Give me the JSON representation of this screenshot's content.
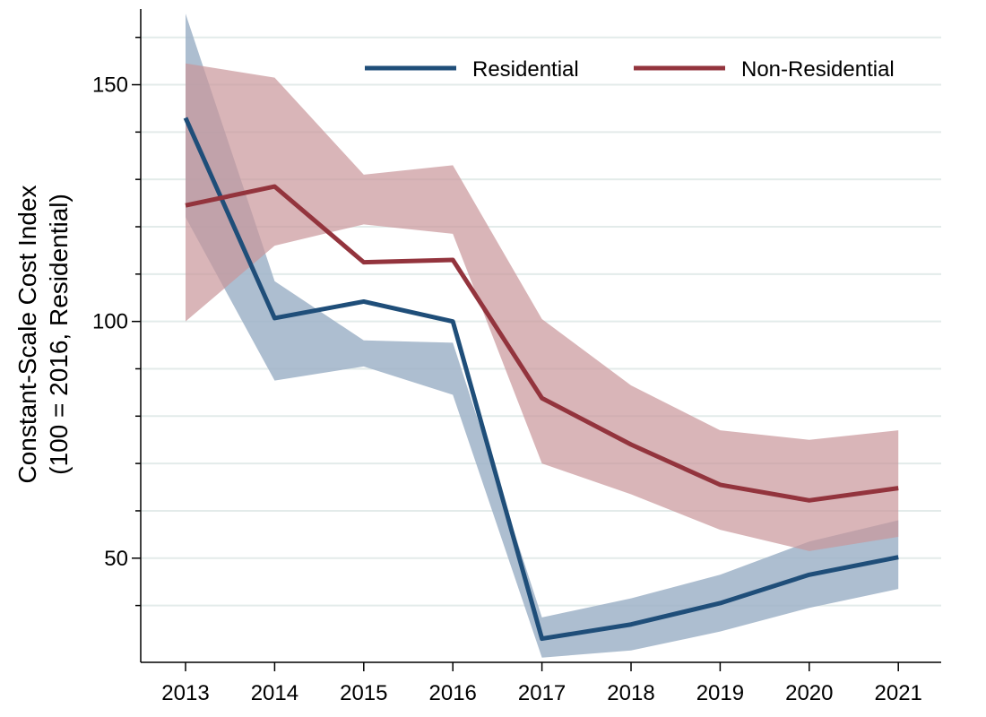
{
  "chart_data": {
    "type": "line",
    "title": "",
    "xlabel": "",
    "ylabel_line1": "Constant-Scale Cost Index",
    "ylabel_line2": "(100 = 2016, Residential)",
    "categories": [
      "2013",
      "2014",
      "2015",
      "2016",
      "2017",
      "2018",
      "2019",
      "2020",
      "2021"
    ],
    "ylim": [
      28,
      166
    ],
    "y_major_ticks": [
      50,
      100,
      150
    ],
    "y_minor_ticks": [
      40,
      60,
      70,
      80,
      90,
      110,
      120,
      130,
      140,
      160
    ],
    "grid": true,
    "legend_position": "top-right",
    "series": [
      {
        "name": "Residential",
        "color": "#1f4e79",
        "band_color": "#9fb3c8",
        "band_opacity": 0.85,
        "values": [
          143,
          100.7,
          104.2,
          100,
          33,
          36,
          40.5,
          46.5,
          50.2
        ],
        "lower": [
          122,
          87.5,
          90.5,
          84.5,
          29,
          30.5,
          34.5,
          39.5,
          43.5
        ],
        "upper": [
          165,
          108.5,
          96,
          95.5,
          37.5,
          41.5,
          46.5,
          53.5,
          58
        ]
      },
      {
        "name": "Non-Residential",
        "color": "#93343d",
        "band_color": "#c9969a",
        "band_opacity": 0.7,
        "values": [
          124.5,
          128.5,
          112.5,
          113,
          83.8,
          74,
          65.5,
          62.2,
          64.8
        ],
        "lower": [
          100,
          116,
          120.5,
          118.5,
          70,
          63.5,
          56,
          51.5,
          54.5
        ],
        "upper": [
          154.5,
          151.5,
          131,
          133,
          100.5,
          86.5,
          77,
          75,
          77
        ]
      }
    ]
  }
}
